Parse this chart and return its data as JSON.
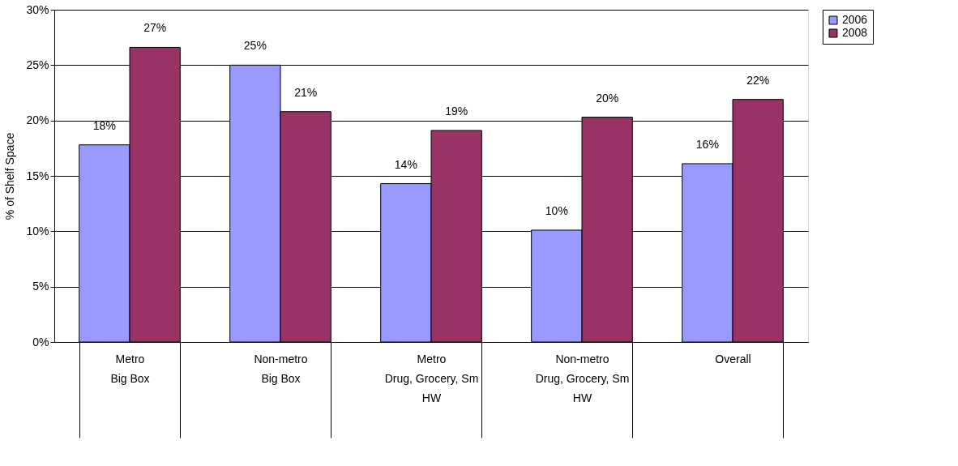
{
  "chart_data": {
    "type": "bar",
    "ylabel": "% of Shelf Space",
    "categories": [
      "Metro\nBig Box",
      "Non-metro\nBig Box",
      "Metro\nDrug, Grocery, Sm\nHW",
      "Non-metro\nDrug, Grocery, Sm\nHW",
      "Overall"
    ],
    "series": [
      {
        "name": "2006",
        "color": "#9999ff",
        "values": [
          17.8,
          25.0,
          14.3,
          10.1,
          16.1
        ],
        "value_labels": [
          "18%",
          "25%",
          "14%",
          "10%",
          "16%"
        ]
      },
      {
        "name": "2008",
        "color": "#993366",
        "values": [
          26.6,
          20.8,
          19.1,
          20.3,
          21.9
        ],
        "value_labels": [
          "27%",
          "21%",
          "19%",
          "20%",
          "22%"
        ]
      }
    ],
    "ylim": [
      0,
      30
    ],
    "yticks": [
      {
        "value": 0,
        "label": "0%"
      },
      {
        "value": 5,
        "label": "5%"
      },
      {
        "value": 10,
        "label": "10%"
      },
      {
        "value": 15,
        "label": "15%"
      },
      {
        "value": 20,
        "label": "20%"
      },
      {
        "value": 25,
        "label": "25%"
      },
      {
        "value": 30,
        "label": "30%"
      }
    ],
    "grid": "y",
    "legend": "right"
  }
}
